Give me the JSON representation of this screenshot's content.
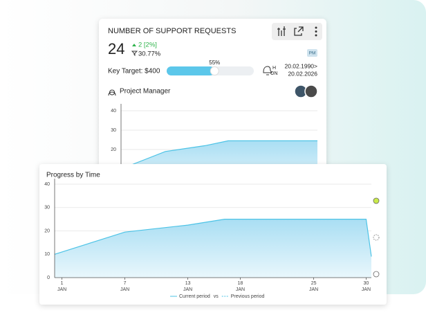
{
  "card": {
    "title": "NUMBER OF SUPPORT REQUESTS",
    "value": 24,
    "change": "2 [2%]",
    "change_pct": "30.77%",
    "badge": "PM",
    "target": "Key Target: $400",
    "progress": {
      "value": 55,
      "label": "55%"
    },
    "freq": "H",
    "status": "ON",
    "date_from": "20.02.1990>",
    "date_to": "20.02.2026",
    "owner": "Project Manager"
  },
  "chart_data": [
    {
      "type": "area",
      "x": [
        0.3,
        7,
        13,
        16.5,
        30
      ],
      "values": [
        10,
        19,
        22,
        24.5,
        24.5
      ],
      "xlim": [
        0.3,
        30
      ],
      "ylim": [
        0,
        40
      ],
      "yticks": [
        20,
        30,
        40
      ],
      "color": "#4cc3e6",
      "grid": true
    },
    {
      "type": "area",
      "title": "Progress by Time",
      "x": [
        0.3,
        7,
        13,
        16.5,
        30,
        30.5
      ],
      "values": [
        10,
        19.5,
        22.5,
        25,
        25,
        9
      ],
      "xlim": [
        0.3,
        30.5
      ],
      "ylim": [
        0,
        40
      ],
      "yticks": [
        0,
        10,
        20,
        30,
        40
      ],
      "xticks": [
        1,
        7,
        13,
        18,
        25,
        30
      ],
      "x_tick_sublabel": "JAN",
      "legend": [
        "Current period",
        "vs",
        "Previous period"
      ],
      "color": "#4cc3e6",
      "grid": true
    }
  ]
}
